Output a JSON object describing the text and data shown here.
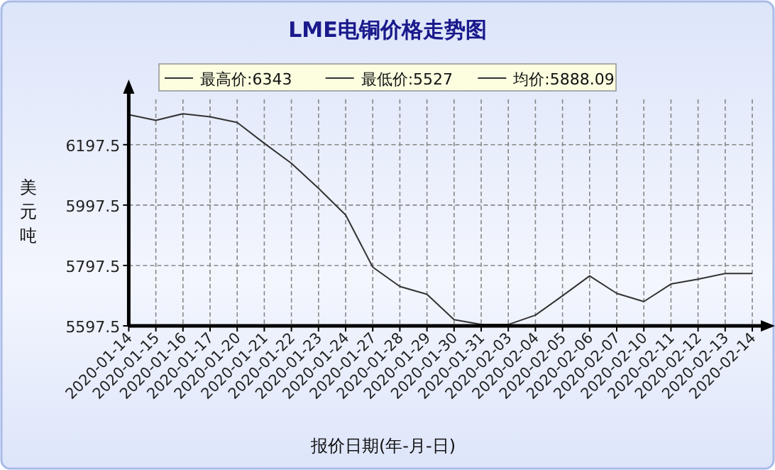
{
  "chart_data": {
    "type": "line",
    "title": "LME电铜价格走势图",
    "xlabel": "报价日期(年-月-日)",
    "ylabel": "美元吨",
    "annotations": [
      "最高价:6343",
      "最低价:5527",
      "均价:5888.09"
    ],
    "categories": [
      "2020-01-14",
      "2020-01-15",
      "2020-01-16",
      "2020-01-17",
      "2020-01-20",
      "2020-01-21",
      "2020-01-22",
      "2020-01-23",
      "2020-01-24",
      "2020-01-27",
      "2020-01-28",
      "2020-01-29",
      "2020-01-30",
      "2020-01-31",
      "2020-02-03",
      "2020-02-04",
      "2020-02-05",
      "2020-02-06",
      "2020-02-07",
      "2020-02-10",
      "2020-02-11",
      "2020-02-12",
      "2020-02-13",
      "2020-02-14"
    ],
    "series": [
      {
        "color": "#333333",
        "values": [
          6297,
          6278,
          6300,
          6290,
          6271,
          6202,
          6136,
          6053,
          5965,
          5792,
          5728,
          5702,
          5618,
          5602,
          5602,
          5633,
          5697,
          5763,
          5705,
          5678,
          5736,
          5752,
          5771,
          5771
        ]
      }
    ],
    "ylim": [
      5597.5,
      6347.5
    ],
    "yticks": [
      5597.5,
      5797.5,
      5997.5,
      6197.5
    ],
    "grid": true,
    "marker": "none",
    "line_style": "solid"
  }
}
